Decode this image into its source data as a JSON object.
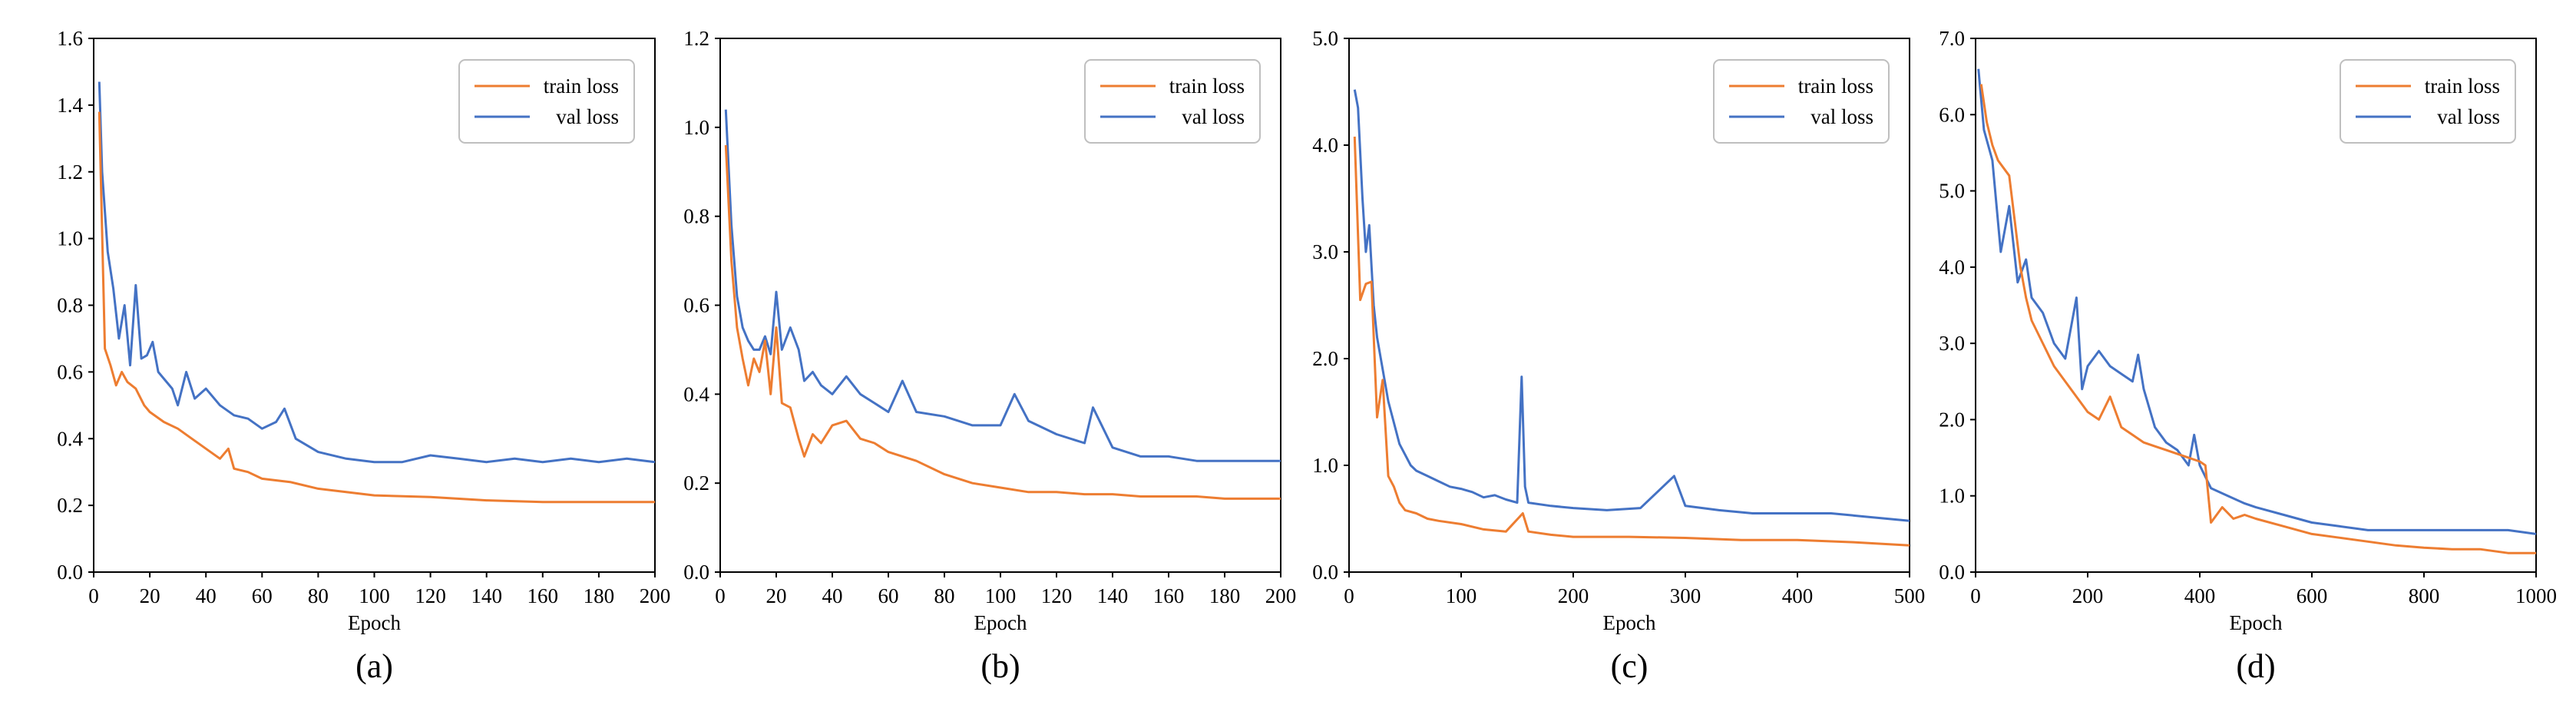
{
  "figure": {
    "panel_labels": [
      "(a)",
      "(b)",
      "(c)",
      "(d)"
    ],
    "colors": {
      "train": "#ED7D31",
      "val": "#4472C4",
      "axis": "#000000"
    }
  },
  "chart_data": [
    {
      "type": "line",
      "title": "",
      "caption": "(a)",
      "xlabel": "Epoch",
      "ylabel": "",
      "xlim": [
        0,
        200
      ],
      "ylim": [
        0,
        1.6
      ],
      "xticks": [
        0,
        20,
        40,
        60,
        80,
        100,
        120,
        140,
        160,
        180,
        200
      ],
      "yticks": [
        0.0,
        0.2,
        0.4,
        0.6,
        0.8,
        1.0,
        1.2,
        1.4,
        1.6
      ],
      "ytick_decimals": 1,
      "legend": {
        "position": "top-right",
        "entries": [
          "train loss",
          "val loss"
        ]
      },
      "series": [
        {
          "name": "train loss",
          "x": [
            2,
            4,
            6,
            8,
            10,
            12,
            15,
            18,
            20,
            25,
            30,
            35,
            40,
            45,
            48,
            50,
            55,
            60,
            70,
            80,
            90,
            100,
            120,
            140,
            160,
            180,
            200
          ],
          "values": [
            1.38,
            0.67,
            0.62,
            0.56,
            0.6,
            0.57,
            0.55,
            0.5,
            0.48,
            0.45,
            0.43,
            0.4,
            0.37,
            0.34,
            0.37,
            0.31,
            0.3,
            0.28,
            0.27,
            0.25,
            0.24,
            0.23,
            0.225,
            0.215,
            0.21,
            0.21,
            0.21
          ]
        },
        {
          "name": "val loss",
          "x": [
            2,
            3,
            5,
            7,
            9,
            11,
            13,
            15,
            17,
            19,
            21,
            23,
            25,
            28,
            30,
            33,
            36,
            40,
            45,
            50,
            55,
            60,
            65,
            68,
            72,
            80,
            90,
            100,
            110,
            120,
            130,
            140,
            150,
            160,
            170,
            180,
            190,
            200
          ],
          "values": [
            1.47,
            1.2,
            0.96,
            0.85,
            0.7,
            0.8,
            0.62,
            0.86,
            0.64,
            0.65,
            0.69,
            0.6,
            0.58,
            0.55,
            0.5,
            0.6,
            0.52,
            0.55,
            0.5,
            0.47,
            0.46,
            0.43,
            0.45,
            0.49,
            0.4,
            0.36,
            0.34,
            0.33,
            0.33,
            0.35,
            0.34,
            0.33,
            0.34,
            0.33,
            0.34,
            0.33,
            0.34,
            0.33
          ]
        }
      ]
    },
    {
      "type": "line",
      "title": "",
      "caption": "(b)",
      "xlabel": "Epoch",
      "ylabel": "",
      "xlim": [
        0,
        200
      ],
      "ylim": [
        0,
        1.2
      ],
      "xticks": [
        0,
        20,
        40,
        60,
        80,
        100,
        120,
        140,
        160,
        180,
        200
      ],
      "yticks": [
        0.0,
        0.2,
        0.4,
        0.6,
        0.8,
        1.0,
        1.2
      ],
      "ytick_decimals": 1,
      "legend": {
        "position": "top-right",
        "entries": [
          "train loss",
          "val loss"
        ]
      },
      "series": [
        {
          "name": "train loss",
          "x": [
            2,
            4,
            6,
            8,
            10,
            12,
            14,
            16,
            18,
            20,
            22,
            25,
            28,
            30,
            33,
            36,
            40,
            45,
            50,
            55,
            60,
            70,
            80,
            90,
            100,
            110,
            120,
            130,
            140,
            150,
            160,
            170,
            180,
            190,
            200
          ],
          "values": [
            0.96,
            0.7,
            0.55,
            0.48,
            0.42,
            0.48,
            0.45,
            0.52,
            0.4,
            0.55,
            0.38,
            0.37,
            0.3,
            0.26,
            0.31,
            0.29,
            0.33,
            0.34,
            0.3,
            0.29,
            0.27,
            0.25,
            0.22,
            0.2,
            0.19,
            0.18,
            0.18,
            0.175,
            0.175,
            0.17,
            0.17,
            0.17,
            0.165,
            0.165,
            0.165
          ]
        },
        {
          "name": "val loss",
          "x": [
            2,
            4,
            6,
            8,
            10,
            12,
            14,
            16,
            18,
            20,
            22,
            25,
            28,
            30,
            33,
            36,
            40,
            45,
            50,
            55,
            60,
            65,
            70,
            80,
            90,
            100,
            105,
            110,
            120,
            130,
            133,
            140,
            150,
            160,
            170,
            180,
            190,
            200
          ],
          "values": [
            1.04,
            0.78,
            0.62,
            0.55,
            0.52,
            0.5,
            0.5,
            0.53,
            0.49,
            0.63,
            0.5,
            0.55,
            0.5,
            0.43,
            0.45,
            0.42,
            0.4,
            0.44,
            0.4,
            0.38,
            0.36,
            0.43,
            0.36,
            0.35,
            0.33,
            0.33,
            0.4,
            0.34,
            0.31,
            0.29,
            0.37,
            0.28,
            0.26,
            0.26,
            0.25,
            0.25,
            0.25,
            0.25
          ]
        }
      ]
    },
    {
      "type": "line",
      "title": "",
      "caption": "(c)",
      "xlabel": "Epoch",
      "ylabel": "",
      "xlim": [
        0,
        500
      ],
      "ylim": [
        0,
        5.0
      ],
      "xticks": [
        0,
        100,
        200,
        300,
        400,
        500
      ],
      "yticks": [
        0.0,
        1.0,
        2.0,
        3.0,
        4.0,
        5.0
      ],
      "ytick_decimals": 1,
      "legend": {
        "position": "top-right",
        "entries": [
          "train loss",
          "val loss"
        ]
      },
      "series": [
        {
          "name": "train loss",
          "x": [
            5,
            10,
            15,
            20,
            25,
            30,
            35,
            40,
            45,
            50,
            60,
            70,
            80,
            100,
            120,
            140,
            155,
            160,
            180,
            200,
            250,
            300,
            350,
            400,
            450,
            500
          ],
          "values": [
            4.08,
            2.55,
            2.7,
            2.72,
            1.45,
            1.8,
            0.9,
            0.8,
            0.65,
            0.58,
            0.55,
            0.5,
            0.48,
            0.45,
            0.4,
            0.38,
            0.55,
            0.38,
            0.35,
            0.33,
            0.33,
            0.32,
            0.3,
            0.3,
            0.28,
            0.25
          ]
        },
        {
          "name": "val loss",
          "x": [
            5,
            8,
            12,
            15,
            18,
            22,
            25,
            30,
            35,
            40,
            45,
            50,
            55,
            60,
            70,
            80,
            90,
            100,
            110,
            120,
            130,
            140,
            150,
            154,
            157,
            160,
            180,
            200,
            230,
            260,
            290,
            300,
            330,
            360,
            400,
            430,
            460,
            500
          ],
          "values": [
            4.52,
            4.35,
            3.5,
            3.0,
            3.25,
            2.5,
            2.2,
            1.9,
            1.6,
            1.4,
            1.2,
            1.1,
            1.0,
            0.95,
            0.9,
            0.85,
            0.8,
            0.78,
            0.75,
            0.7,
            0.72,
            0.68,
            0.65,
            1.83,
            0.8,
            0.65,
            0.62,
            0.6,
            0.58,
            0.6,
            0.9,
            0.62,
            0.58,
            0.55,
            0.55,
            0.55,
            0.52,
            0.48
          ]
        }
      ]
    },
    {
      "type": "line",
      "title": "",
      "caption": "(d)",
      "xlabel": "Epoch",
      "ylabel": "",
      "xlim": [
        0,
        1000
      ],
      "ylim": [
        0,
        7.0
      ],
      "xticks": [
        0,
        200,
        400,
        600,
        800,
        1000
      ],
      "yticks": [
        0.0,
        1.0,
        2.0,
        3.0,
        4.0,
        5.0,
        6.0,
        7.0
      ],
      "ytick_decimals": 1,
      "legend": {
        "position": "top-right",
        "entries": [
          "train loss",
          "val loss"
        ]
      },
      "series": [
        {
          "name": "train loss",
          "x": [
            10,
            20,
            30,
            40,
            50,
            60,
            70,
            80,
            90,
            100,
            120,
            140,
            160,
            180,
            200,
            220,
            240,
            260,
            280,
            300,
            320,
            340,
            360,
            380,
            400,
            410,
            420,
            440,
            460,
            480,
            500,
            550,
            600,
            650,
            700,
            750,
            800,
            850,
            900,
            950,
            1000
          ],
          "values": [
            6.4,
            5.9,
            5.6,
            5.4,
            5.3,
            5.2,
            4.6,
            4.0,
            3.6,
            3.3,
            3.0,
            2.7,
            2.5,
            2.3,
            2.1,
            2.0,
            2.3,
            1.9,
            1.8,
            1.7,
            1.65,
            1.6,
            1.55,
            1.5,
            1.45,
            1.4,
            0.65,
            0.85,
            0.7,
            0.75,
            0.7,
            0.6,
            0.5,
            0.45,
            0.4,
            0.35,
            0.32,
            0.3,
            0.3,
            0.25,
            0.25
          ]
        },
        {
          "name": "val loss",
          "x": [
            5,
            15,
            30,
            45,
            60,
            75,
            90,
            100,
            120,
            140,
            160,
            180,
            190,
            200,
            220,
            240,
            260,
            280,
            290,
            300,
            320,
            340,
            360,
            380,
            390,
            400,
            420,
            450,
            480,
            500,
            550,
            600,
            650,
            700,
            750,
            800,
            850,
            900,
            950,
            1000
          ],
          "values": [
            6.6,
            5.8,
            5.4,
            4.2,
            4.8,
            3.8,
            4.1,
            3.6,
            3.4,
            3.0,
            2.8,
            3.6,
            2.4,
            2.7,
            2.9,
            2.7,
            2.6,
            2.5,
            2.85,
            2.4,
            1.9,
            1.7,
            1.6,
            1.4,
            1.8,
            1.4,
            1.1,
            1.0,
            0.9,
            0.85,
            0.75,
            0.65,
            0.6,
            0.55,
            0.55,
            0.55,
            0.55,
            0.55,
            0.55,
            0.5
          ]
        }
      ]
    }
  ]
}
